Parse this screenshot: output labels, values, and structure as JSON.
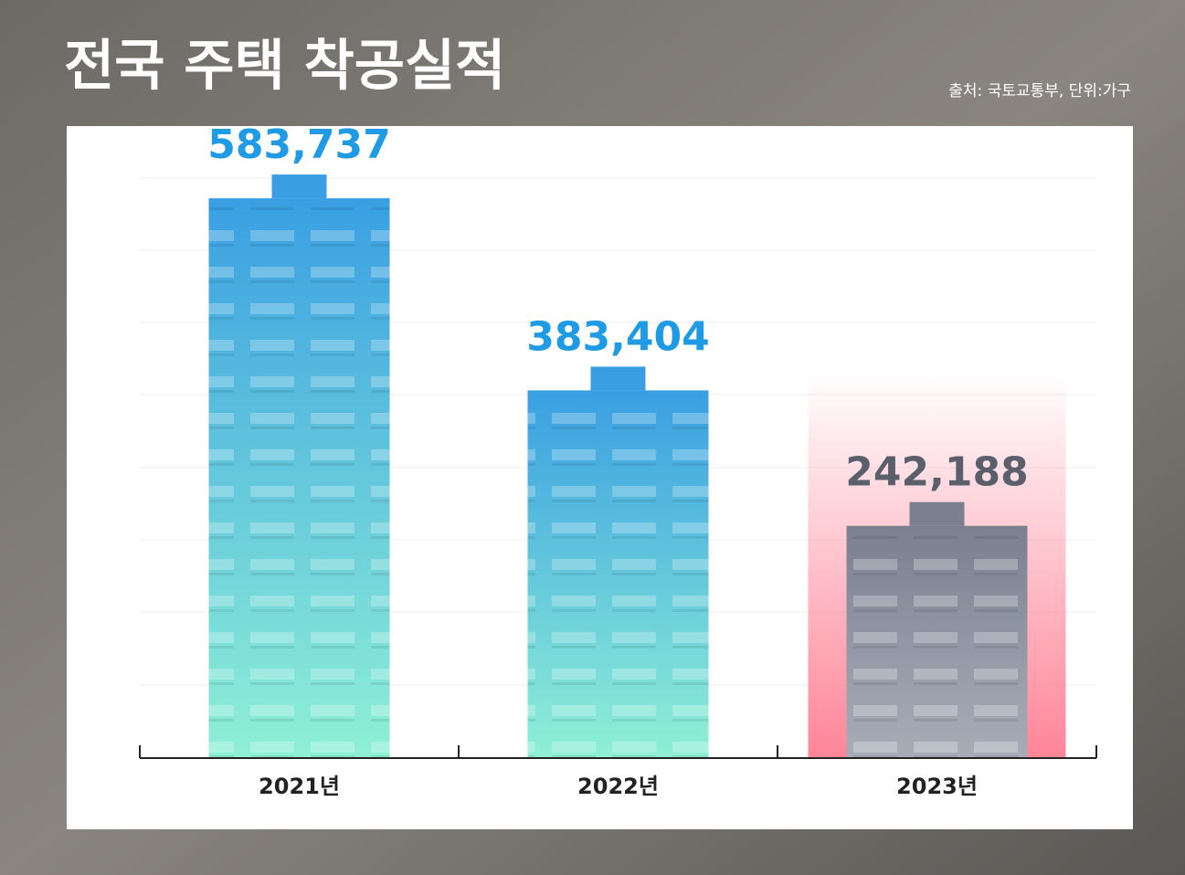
{
  "chart_data": {
    "type": "bar",
    "title": "전국 주택 착공실적",
    "subtitle": "출처: 국토교통부, 단위:가구",
    "categories": [
      "2021년",
      "2022년",
      "2023년"
    ],
    "values": [
      583737,
      383404,
      242188
    ],
    "value_labels": [
      "583,737",
      "383,404",
      "242,188"
    ],
    "colors": [
      "#3a9fe2",
      "#3a9fe2",
      "#7a8090"
    ],
    "label_colors": [
      "#1f9ae4",
      "#1f9ae4",
      "#5a5f6b"
    ],
    "ylim": [
      0,
      600000
    ]
  }
}
